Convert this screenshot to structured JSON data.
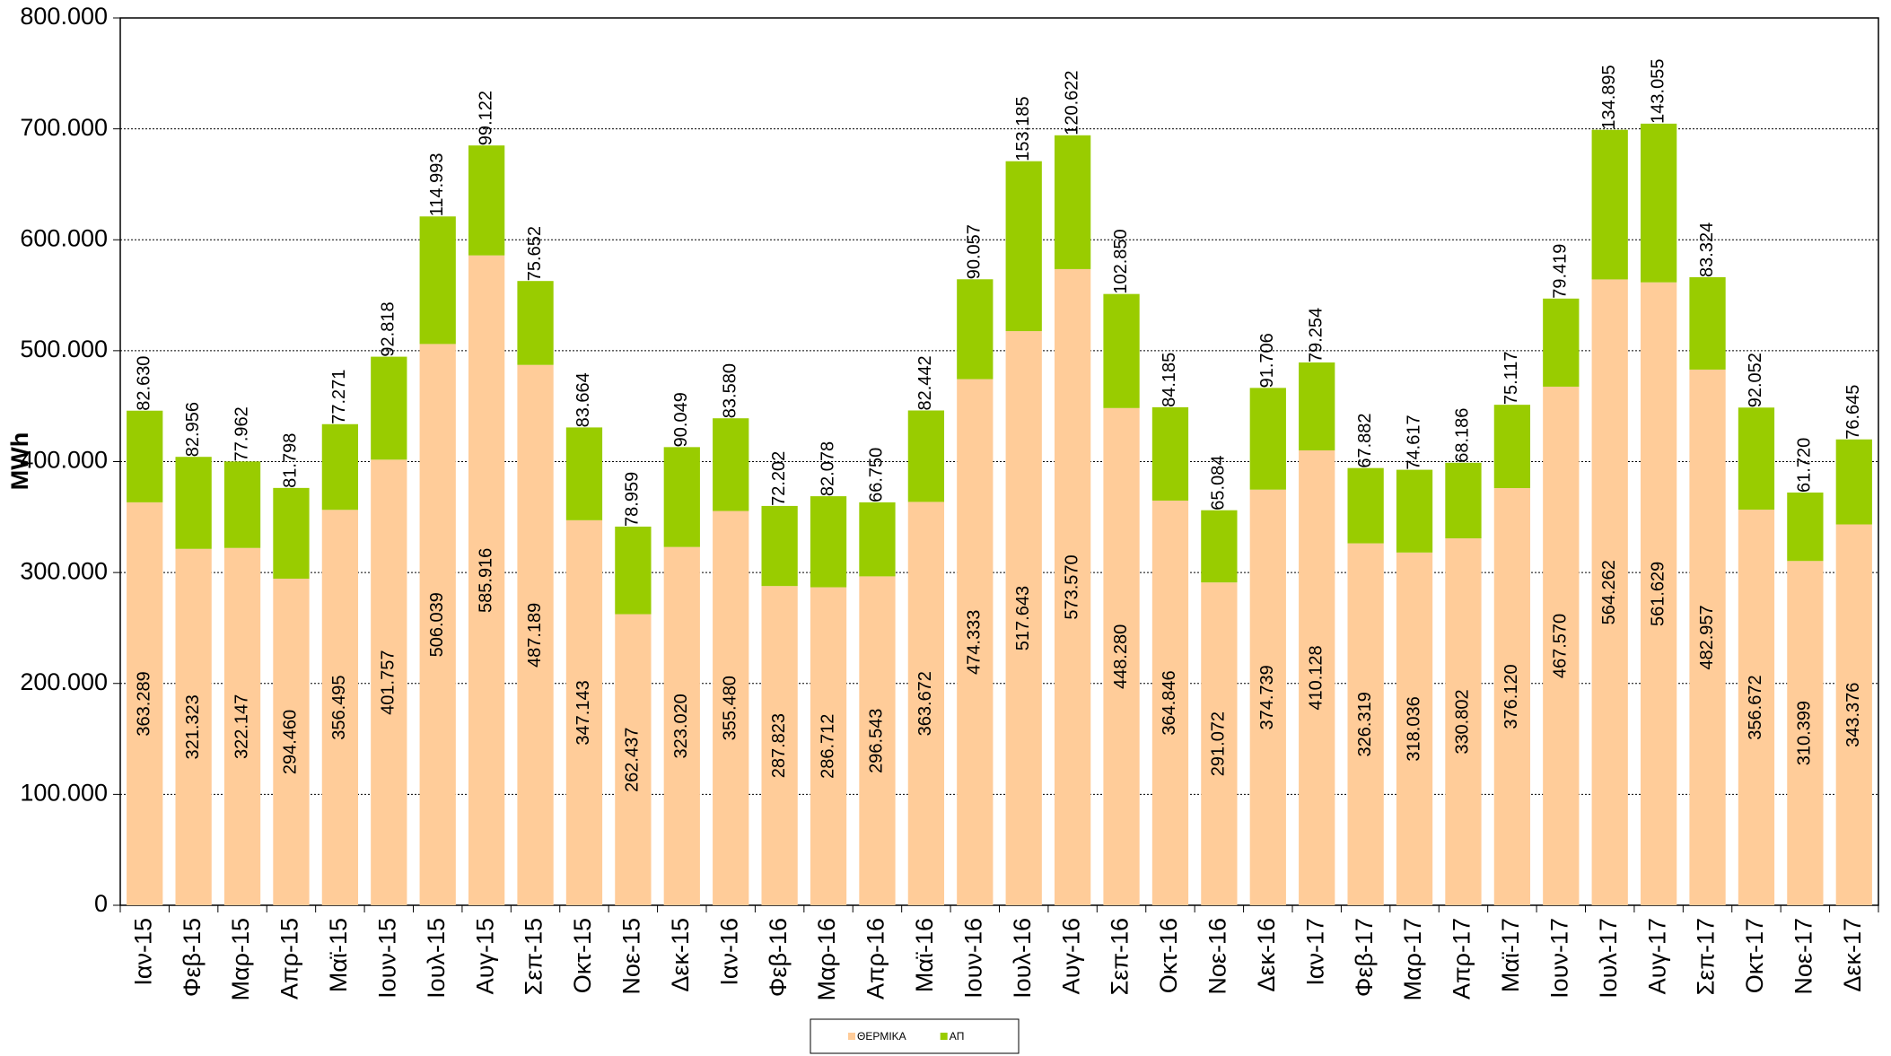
{
  "chart_data": {
    "type": "stacked_bar",
    "y_label": "MWh",
    "categories": [
      "Ιαν-15",
      "Φεβ-15",
      "Μαρ-15",
      "Απρ-15",
      "Μαϊ-15",
      "Ιουν-15",
      "Ιουλ-15",
      "Αυγ-15",
      "Σεπ-15",
      "Οκτ-15",
      "Νοε-15",
      "Δεκ-15",
      "Ιαν-16",
      "Φεβ-16",
      "Μαρ-16",
      "Απρ-16",
      "Μαϊ-16",
      "Ιουν-16",
      "Ιουλ-16",
      "Αυγ-16",
      "Σεπ-16",
      "Οκτ-16",
      "Νοε-16",
      "Δεκ-16",
      "Ιαν-17",
      "Φεβ-17",
      "Μαρ-17",
      "Απρ-17",
      "Μαϊ-17",
      "Ιουν-17",
      "Ιουλ-17",
      "Αυγ-17",
      "Σεπ-17",
      "Οκτ-17",
      "Νοε-17",
      "Δεκ-17"
    ],
    "series": [
      {
        "name": "ΘΕΡΜΙΚΑ",
        "color": "#ffcc99",
        "values": [
          363289,
          321323,
          322147,
          294460,
          356495,
          401757,
          506039,
          585916,
          487189,
          347143,
          262437,
          323020,
          355480,
          287823,
          286712,
          296543,
          363672,
          474333,
          517643,
          573570,
          448280,
          364846,
          291072,
          374739,
          410128,
          326319,
          318036,
          330802,
          376120,
          467570,
          564262,
          561629,
          482957,
          356672,
          310399,
          343376
        ],
        "value_labels": [
          "363.289",
          "321.323",
          "322.147",
          "294.460",
          "356.495",
          "401.757",
          "506.039",
          "585.916",
          "487.189",
          "347.143",
          "262.437",
          "323.020",
          "355.480",
          "287.823",
          "286.712",
          "296.543",
          "363.672",
          "474.333",
          "517.643",
          "573.570",
          "448.280",
          "364.846",
          "291.072",
          "374.739",
          "410.128",
          "326.319",
          "318.036",
          "330.802",
          "376.120",
          "467.570",
          "564.262",
          "561.629",
          "482.957",
          "356.672",
          "310.399",
          "343.376"
        ]
      },
      {
        "name": "ΑΠ",
        "color": "#99cc00",
        "values": [
          82630,
          82956,
          77962,
          81798,
          77271,
          92818,
          114993,
          99122,
          75652,
          83664,
          78959,
          90049,
          83580,
          72202,
          82078,
          66750,
          82442,
          90057,
          153185,
          120622,
          102850,
          84185,
          65084,
          91706,
          79254,
          67882,
          74617,
          68186,
          75117,
          79419,
          134895,
          143055,
          83324,
          92052,
          61720,
          76645
        ],
        "value_labels": [
          "82.630",
          "82.956",
          "77.962",
          "81.798",
          "77.271",
          "92.818",
          "114.993",
          "99.122",
          "75.652",
          "83.664",
          "78.959",
          "90.049",
          "83.580",
          "72.202",
          "82.078",
          "66.750",
          "82.442",
          "90.057",
          "153.185",
          "120.622",
          "102.850",
          "84.185",
          "65.084",
          "91.706",
          "79.254",
          "67.882",
          "74.617",
          "68.186",
          "75.117",
          "79.419",
          "134.895",
          "143.055",
          "83.324",
          "92.052",
          "61.720",
          "76.645"
        ]
      }
    ],
    "ylim": [
      0,
      800000
    ],
    "yticks": [
      0,
      {
        "value": 100000,
        "label": "100.000"
      },
      {
        "value": 200000,
        "label": "200.000"
      },
      {
        "value": 300000,
        "label": "300.000"
      },
      {
        "value": 400000,
        "label": "400.000"
      },
      {
        "value": 500000,
        "label": "500.000"
      },
      {
        "value": 600000,
        "label": "600.000"
      },
      {
        "value": 700000,
        "label": "700.000"
      },
      {
        "value": 800000,
        "label": "800.000"
      }
    ],
    "grid": true
  }
}
